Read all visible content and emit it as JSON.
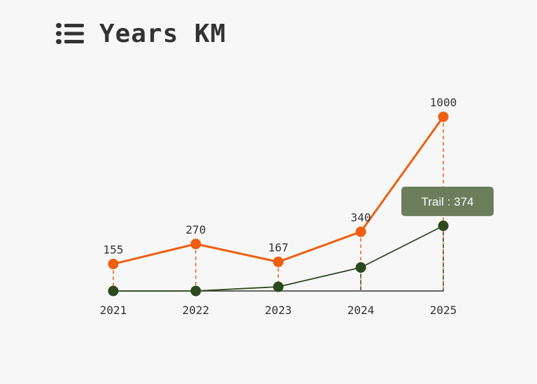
{
  "header": {
    "title": "Years KM",
    "icon": "list-icon"
  },
  "chart_data": {
    "type": "line",
    "categories": [
      "2021",
      "2022",
      "2023",
      "2024",
      "2025"
    ],
    "ylim": [
      0,
      1000
    ],
    "grid": false,
    "series": [
      {
        "name": "",
        "color": "#ee5f12",
        "values": [
          155,
          270,
          167,
          340,
          1000
        ],
        "show_value_labels": true
      },
      {
        "name": "Trail",
        "color": "#2d4a1e",
        "values": [
          0,
          0,
          24,
          135,
          374
        ],
        "show_value_labels": false
      }
    ],
    "tooltip": {
      "text": "Trail : 374",
      "category": "2025",
      "background": "#6b7d5a"
    }
  }
}
